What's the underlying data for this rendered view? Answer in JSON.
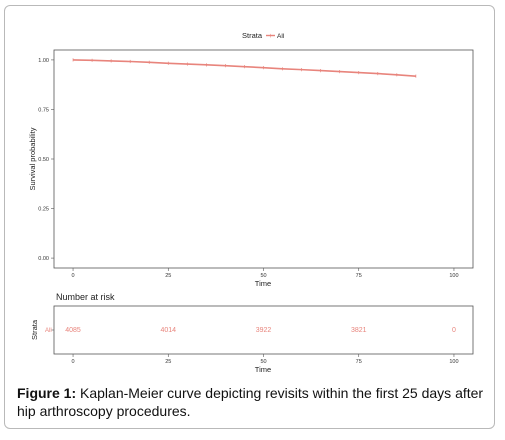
{
  "chart_data": [
    {
      "type": "line",
      "legend_title": "Strata",
      "legend_placement": "top",
      "series": [
        {
          "name": "All",
          "color": "#e8847c",
          "x": [
            0,
            5,
            10,
            15,
            20,
            25,
            30,
            35,
            40,
            45,
            50,
            55,
            60,
            65,
            70,
            75,
            80,
            85,
            90
          ],
          "y": [
            1.0,
            0.998,
            0.995,
            0.992,
            0.988,
            0.983,
            0.979,
            0.975,
            0.971,
            0.966,
            0.961,
            0.955,
            0.951,
            0.946,
            0.941,
            0.936,
            0.931,
            0.925,
            0.918
          ]
        }
      ],
      "xlabel": "Time",
      "ylabel": "Survival probability",
      "xlim": [
        -5,
        105
      ],
      "ylim": [
        -0.05,
        1.05
      ],
      "x_ticks": [
        "0",
        "25",
        "50",
        "75",
        "100"
      ],
      "y_ticks": [
        "0.00",
        "0.25",
        "0.50",
        "0.75",
        "1.00"
      ],
      "grid": false
    },
    {
      "type": "table",
      "title": "Number at risk",
      "ylabel": "Strata",
      "xlabel": "Time",
      "row_label": "All",
      "x": [
        0,
        25,
        50,
        75,
        100
      ],
      "values": [
        "4085",
        "4014",
        "3922",
        "3821",
        "0"
      ],
      "x_ticks": [
        "0",
        "25",
        "50",
        "75",
        "100"
      ],
      "xlim": [
        -5,
        105
      ]
    }
  ],
  "caption": {
    "label": "Figure 1:",
    "text": " Kaplan-Meier curve depicting revisits within the first 25 days after hip arthroscopy procedures."
  }
}
